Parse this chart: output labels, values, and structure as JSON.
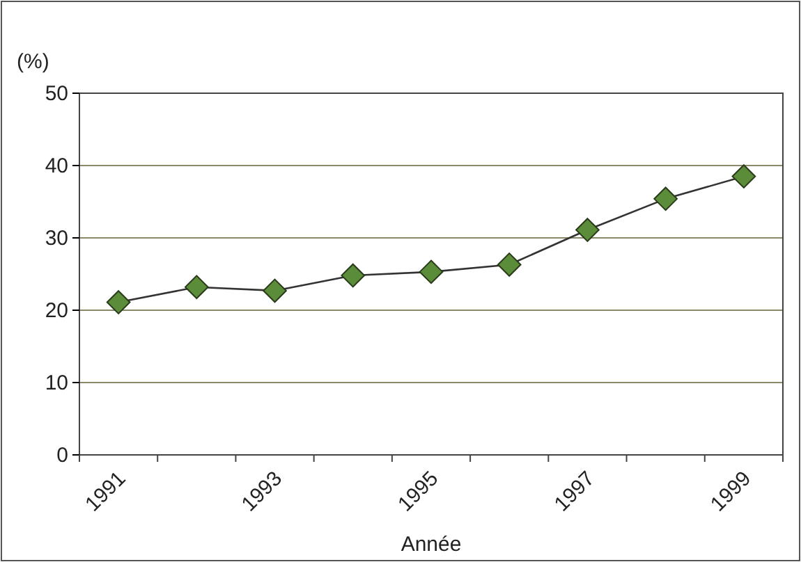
{
  "chart_data": {
    "type": "line",
    "xlabel": "Année",
    "ylabel": "(%)",
    "categories": [
      "1991",
      null,
      "1993",
      null,
      "1995",
      null,
      "1997",
      null,
      "1999"
    ],
    "series": [
      {
        "color": "#5b8c3a",
        "values": [
          21.1,
          23.2,
          22.7,
          24.8,
          25.3,
          26.3,
          31.1,
          35.4,
          38.5
        ]
      }
    ],
    "ylim": [
      0,
      50
    ],
    "yticks": [
      0,
      10,
      20,
      30,
      40,
      50
    ],
    "grid": "y",
    "marker": "diamond"
  }
}
